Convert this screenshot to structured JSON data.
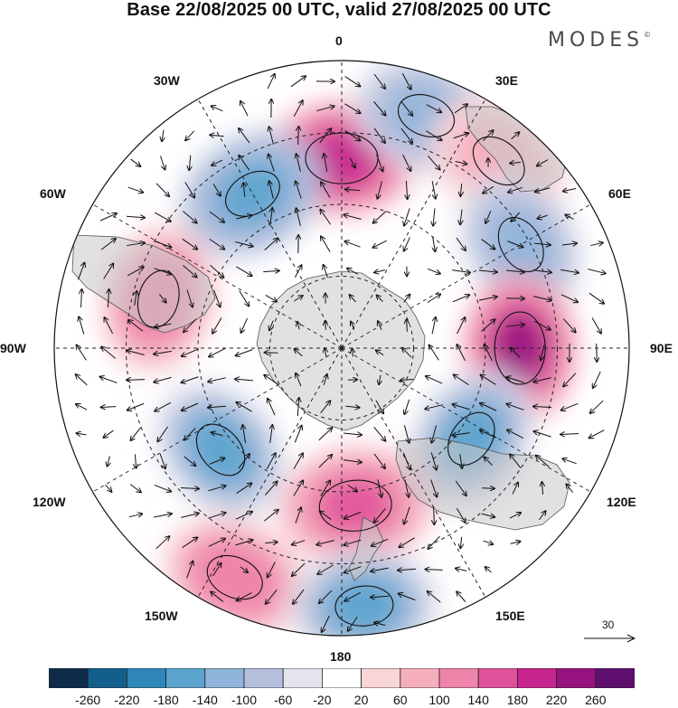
{
  "title": "Base 22/08/2025 00 UTC, valid 27/08/2025 00 UTC",
  "brand": "MODES",
  "brand_mark": "©",
  "longitude_labels": {
    "top": "0",
    "top_left": "30W",
    "top_right": "30E",
    "upper_left": "60W",
    "upper_right": "60E",
    "left": "90W",
    "right": "90E",
    "lower_left": "120W",
    "lower_right": "120E",
    "bottom_left": "150W",
    "bottom_right": "150E",
    "bottom": "180"
  },
  "reference_vector": {
    "label": "30"
  },
  "colorbar": {
    "ticks": [
      "-260",
      "-220",
      "-180",
      "-140",
      "-100",
      "-60",
      "-20",
      "20",
      "60",
      "100",
      "140",
      "180",
      "220",
      "260"
    ],
    "colors": [
      "#0e2c4a",
      "#135f8c",
      "#2e87b8",
      "#5aa3cd",
      "#8fb4d9",
      "#b4bfdc",
      "#e4e4ef",
      "#ffffff",
      "#f8d5d8",
      "#f5aebe",
      "#ee84aa",
      "#e0519b",
      "#c6248e",
      "#96137f",
      "#5e0f6e"
    ]
  },
  "anomaly_centers": [
    {
      "lon": 0,
      "lat_dist": 0.66,
      "value": 200,
      "sign": "positive"
    },
    {
      "lon": -30,
      "lat_dist": 0.62,
      "value": -150,
      "sign": "negative"
    },
    {
      "lon": 20,
      "lat_dist": 0.86,
      "value": -120,
      "sign": "negative"
    },
    {
      "lon": 40,
      "lat_dist": 0.85,
      "value": 80,
      "sign": "positive"
    },
    {
      "lon": 60,
      "lat_dist": 0.72,
      "value": -120,
      "sign": "negative"
    },
    {
      "lon": 90,
      "lat_dist": 0.62,
      "value": 230,
      "sign": "positive"
    },
    {
      "lon": 125,
      "lat_dist": 0.55,
      "value": -140,
      "sign": "negative"
    },
    {
      "lon": -75,
      "lat_dist": 0.66,
      "value": 140,
      "sign": "positive"
    },
    {
      "lon": -130,
      "lat_dist": 0.55,
      "value": -140,
      "sign": "negative"
    },
    {
      "lon": 175,
      "lat_dist": 0.55,
      "value": 160,
      "sign": "positive"
    },
    {
      "lon": -155,
      "lat_dist": 0.88,
      "value": 140,
      "sign": "positive"
    },
    {
      "lon": 175,
      "lat_dist": 0.9,
      "value": -140,
      "sign": "negative"
    }
  ]
}
